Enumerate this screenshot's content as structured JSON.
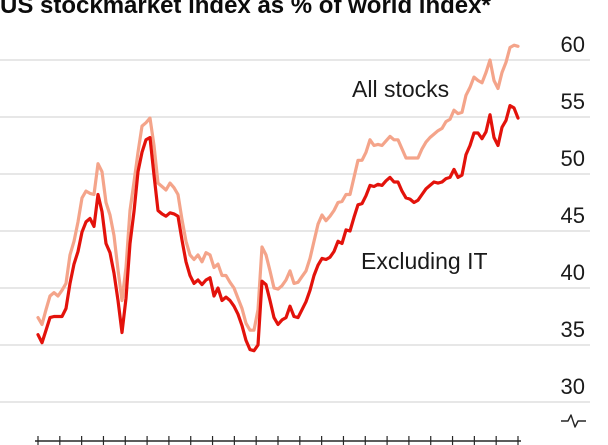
{
  "chart_data": {
    "type": "line",
    "title": "US stockmarket index as % of world index*",
    "xlabel": "",
    "ylabel": "",
    "ylim": [
      30,
      60
    ],
    "yticks": [
      30,
      35,
      40,
      45,
      50,
      55,
      60
    ],
    "y_axis_position": "right",
    "y_axis_break": true,
    "grid": true,
    "legend": "inline",
    "series": [
      {
        "name": "All stocks",
        "color": "#F4A48A",
        "values": [
          37.4,
          36.8,
          38.1,
          39.3,
          39.6,
          39.3,
          39.8,
          40.4,
          42.9,
          44.1,
          45.8,
          47.9,
          48.5,
          48.3,
          48.2,
          50.9,
          50.2,
          47.5,
          46.4,
          44.6,
          41.6,
          38.9,
          41.8,
          46.8,
          49.3,
          51.9,
          54.2,
          54.5,
          54.9,
          52.5,
          49.2,
          48.9,
          48.6,
          49.2,
          48.8,
          48.2,
          46.0,
          44.1,
          42.9,
          42.5,
          42.9,
          42.3,
          43.1,
          42.9,
          41.8,
          42.1,
          41.1,
          41.1,
          40.5,
          40.0,
          39.1,
          38.2,
          36.9,
          36.3,
          36.3,
          38.1,
          43.6,
          42.9,
          41.5,
          40.0,
          39.9,
          40.2,
          40.7,
          41.5,
          40.4,
          40.5,
          41.0,
          41.5,
          42.6,
          44.1,
          45.6,
          46.4,
          45.9,
          46.3,
          46.8,
          47.5,
          47.6,
          48.2,
          48.2,
          49.7,
          51.2,
          51.2,
          51.9,
          53.0,
          52.5,
          52.6,
          52.5,
          52.9,
          53.3,
          53.0,
          53.0,
          52.2,
          51.4,
          51.4,
          51.4,
          51.4,
          52.2,
          52.8,
          53.2,
          53.5,
          53.8,
          54.0,
          54.6,
          54.8,
          55.6,
          55.3,
          55.4,
          56.9,
          57.6,
          58.5,
          58.2,
          58.0,
          58.9,
          60.0,
          58.2,
          57.5,
          58.9,
          59.8,
          61.1,
          61.3,
          61.2
        ]
      },
      {
        "name": "Excluding IT",
        "color": "#E3120B",
        "values": [
          35.9,
          35.2,
          36.3,
          37.4,
          37.5,
          37.5,
          37.5,
          38.2,
          40.4,
          42.1,
          43.2,
          44.9,
          45.8,
          46.1,
          45.4,
          48.2,
          46.7,
          43.9,
          43.1,
          41.3,
          38.9,
          36.1,
          39.1,
          43.9,
          46.7,
          50.2,
          51.9,
          53.0,
          53.2,
          49.9,
          46.8,
          46.5,
          46.3,
          46.6,
          46.5,
          46.3,
          44.2,
          42.3,
          41.1,
          40.4,
          40.7,
          40.3,
          40.7,
          40.9,
          39.3,
          40.0,
          38.9,
          39.2,
          38.9,
          38.4,
          37.7,
          36.7,
          35.4,
          34.6,
          34.5,
          35.0,
          40.6,
          40.3,
          38.9,
          37.4,
          36.8,
          37.2,
          37.4,
          38.4,
          37.5,
          37.4,
          38.1,
          38.8,
          39.8,
          41.1,
          42.0,
          42.6,
          42.5,
          42.7,
          43.2,
          44.1,
          43.9,
          45.1,
          45.0,
          46.2,
          47.3,
          47.4,
          48.1,
          49.0,
          48.9,
          49.1,
          49.0,
          49.4,
          49.7,
          49.3,
          49.3,
          48.5,
          47.9,
          47.8,
          47.5,
          47.7,
          48.2,
          48.7,
          49.0,
          49.3,
          49.2,
          49.3,
          49.6,
          49.7,
          50.4,
          49.7,
          49.9,
          51.7,
          52.5,
          53.6,
          53.6,
          53.1,
          53.7,
          55.2,
          53.2,
          52.5,
          54.1,
          54.7,
          56.0,
          55.8,
          54.9
        ]
      }
    ]
  }
}
